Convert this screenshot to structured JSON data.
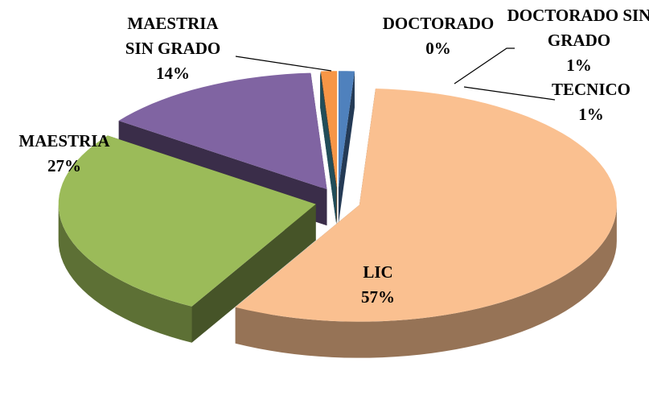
{
  "chart_data": {
    "type": "pie3d",
    "categories": [
      "TECNICO",
      "LIC",
      "MAESTRIA",
      "MAESTRIA SIN GRADO",
      "DOCTORADO",
      "DOCTORADO SIN GRADO"
    ],
    "values": [
      1,
      57,
      27,
      14,
      0,
      1
    ],
    "value_labels": [
      "1%",
      "57%",
      "27%",
      "14%",
      "0%",
      "1%"
    ],
    "colors": [
      "#4f81bd",
      "#fac090",
      "#9bbb59",
      "#8064a2",
      "#4bacc6",
      "#f79646"
    ]
  }
}
